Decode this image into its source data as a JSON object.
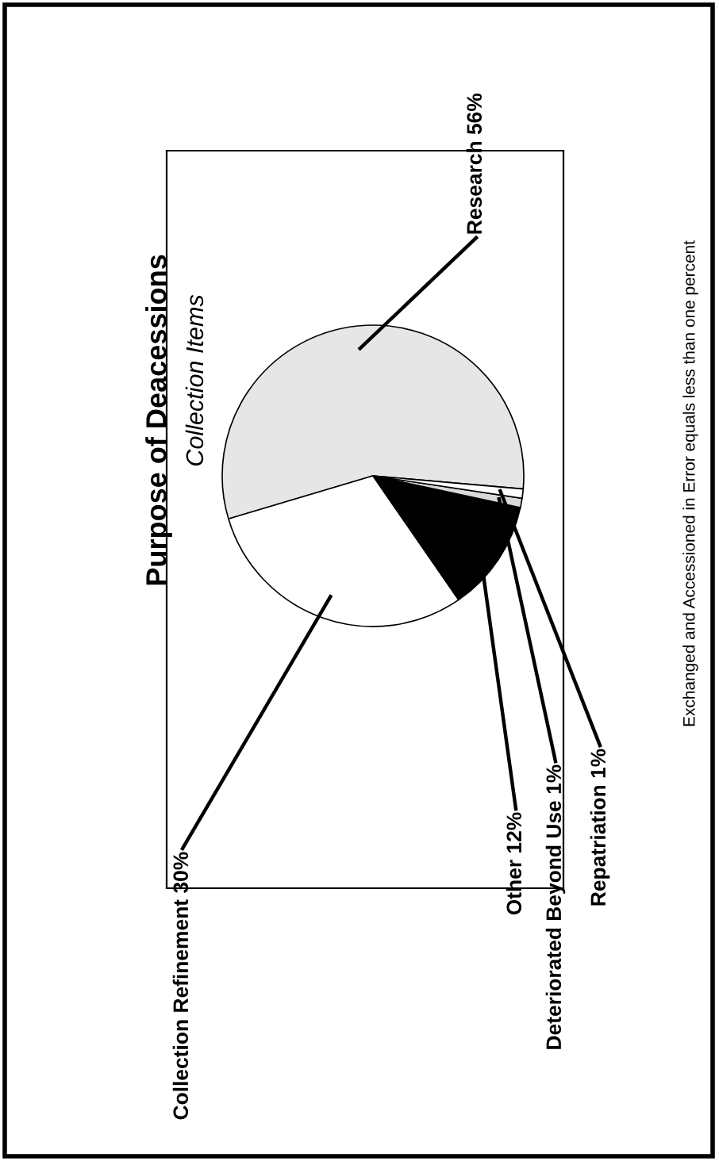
{
  "chart_data": {
    "type": "pie",
    "title": "Purpose of Deacessions",
    "subtitle": "Collection Items",
    "categories": [
      "Research",
      "Collection Refinement",
      "Other",
      "Deteriorated Beyond Use",
      "Repatriation"
    ],
    "values": [
      56,
      30,
      12,
      1,
      1
    ],
    "value_labels": [
      "56%",
      "30%",
      "12%",
      "1%",
      "1%"
    ],
    "colors": [
      "#e6e6e6",
      "#ffffff",
      "#000000",
      "#d9d9d9",
      "#ffffff"
    ],
    "annotations": [
      "Exchanged and Accessioned in Error equals less than one percent"
    ]
  }
}
